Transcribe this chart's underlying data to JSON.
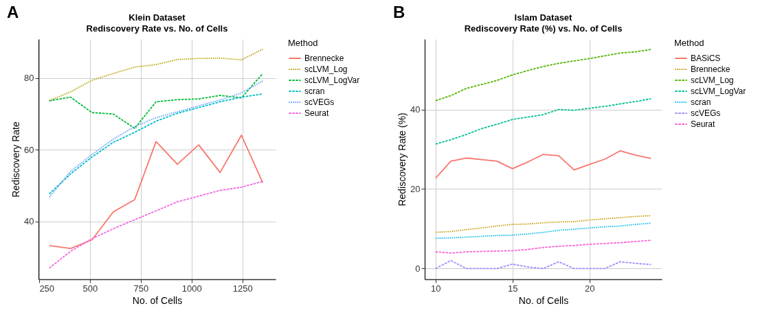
{
  "chart_data": [
    {
      "type": "line",
      "title": "Klein Dataset",
      "subtitle": "Rediscovery Rate vs. No. of Cells",
      "xlabel": "No. of Cells",
      "ylabel": "Rediscovery Rate",
      "legend_title": "Method",
      "annotations": [
        "A"
      ],
      "x": [
        300,
        405,
        510,
        615,
        720,
        825,
        930,
        1035,
        1140,
        1245,
        1350
      ],
      "xlim": [
        247,
        1413
      ],
      "xticks": [
        250,
        500,
        750,
        1000,
        1250
      ],
      "ylim": [
        23.9,
        90.9
      ],
      "yticks": [
        40,
        60,
        80
      ],
      "grid": true,
      "legend": "right",
      "marker": "none",
      "series": [
        {
          "name": "Brennecke",
          "color": "#f8766d",
          "line_style": "solid",
          "values": [
            33.3,
            32.5,
            34.9,
            42.7,
            46.1,
            62.3,
            56.0,
            61.4,
            53.7,
            64.1,
            50.8
          ]
        },
        {
          "name": "scLVM_Log",
          "color": "#b79f00",
          "line_style": "dotted",
          "values": [
            73.7,
            76.2,
            79.4,
            81.3,
            83.1,
            83.8,
            85.2,
            85.5,
            85.6,
            85.1,
            88.1
          ]
        },
        {
          "name": "scLVM_LogVar",
          "color": "#00ba38",
          "line_style": "dashed",
          "values": [
            73.7,
            74.7,
            70.4,
            70.0,
            66.0,
            73.4,
            74.0,
            74.2,
            75.2,
            74.5,
            81.3
          ]
        },
        {
          "name": "scran",
          "color": "#00bfc4",
          "line_style": "dashed",
          "values": [
            47.7,
            53.3,
            58.0,
            62.1,
            64.9,
            68.0,
            70.2,
            71.8,
            73.4,
            74.7,
            75.6
          ]
        },
        {
          "name": "scVEGs",
          "color": "#619cff",
          "line_style": "dotted",
          "values": [
            46.8,
            54.0,
            58.7,
            63.0,
            66.5,
            69.0,
            70.6,
            72.3,
            73.9,
            75.9,
            79.2
          ]
        },
        {
          "name": "Seurat",
          "color": "#f564e3",
          "line_style": "dashed",
          "values": [
            27.0,
            31.7,
            35.2,
            38.0,
            40.5,
            43.0,
            45.5,
            47.1,
            48.7,
            49.6,
            51.2
          ]
        }
      ]
    },
    {
      "type": "line",
      "title": "Islam Dataset",
      "subtitle": "Rediscovery Rate (%) vs. No. of Cells",
      "xlabel": "No. of Cells",
      "ylabel": "Rediscovery Rate (%)",
      "legend_title": "Method",
      "annotations": [
        "B"
      ],
      "x": [
        10,
        11,
        12,
        13,
        14,
        15,
        16,
        17,
        18,
        19,
        20,
        21,
        22,
        23,
        24
      ],
      "xlim": [
        9.3,
        24.7
      ],
      "xticks": [
        10,
        15,
        20
      ],
      "ylim": [
        -2.7,
        57.7
      ],
      "yticks": [
        0,
        20,
        40
      ],
      "grid": true,
      "legend": "right",
      "marker": "none",
      "series": [
        {
          "name": "BASiCS",
          "color": "#f8766d",
          "line_style": "solid",
          "values": [
            22.7,
            27.0,
            27.8,
            27.4,
            27.0,
            25.1,
            26.8,
            28.7,
            28.4,
            24.8,
            26.2,
            27.5,
            29.6,
            28.5,
            27.7
          ]
        },
        {
          "name": "Brennecke",
          "color": "#c49a00",
          "line_style": "dotted",
          "values": [
            9.1,
            9.3,
            9.8,
            10.2,
            10.7,
            11.1,
            11.2,
            11.5,
            11.7,
            11.8,
            12.2,
            12.5,
            12.8,
            13.1,
            13.3
          ]
        },
        {
          "name": "scLVM_Log",
          "color": "#53b400",
          "line_style": "dashed",
          "values": [
            42.2,
            43.5,
            45.3,
            46.3,
            47.3,
            48.7,
            49.8,
            50.8,
            51.6,
            52.2,
            52.8,
            53.5,
            54.2,
            54.5,
            55.1
          ]
        },
        {
          "name": "scLVM_LogVar",
          "color": "#00c094",
          "line_style": "dashed",
          "values": [
            31.3,
            32.4,
            33.7,
            35.2,
            36.3,
            37.5,
            38.1,
            38.7,
            40.0,
            39.8,
            40.3,
            40.8,
            41.4,
            42.0,
            42.7
          ]
        },
        {
          "name": "scran",
          "color": "#00b6eb",
          "line_style": "dotted",
          "values": [
            7.6,
            7.7,
            7.9,
            8.1,
            8.3,
            8.4,
            8.7,
            9.1,
            9.6,
            9.9,
            10.2,
            10.5,
            10.7,
            11.1,
            11.4
          ]
        },
        {
          "name": "scVEGs",
          "color": "#a58aff",
          "line_style": "dashed",
          "values": [
            0,
            2.0,
            0,
            0,
            0,
            1.1,
            0.4,
            0,
            1.7,
            0,
            0,
            0,
            1.7,
            1.3,
            1.0
          ]
        },
        {
          "name": "Seurat",
          "color": "#fb61d7",
          "line_style": "dashed",
          "values": [
            4.2,
            3.9,
            4.2,
            4.3,
            4.4,
            4.5,
            4.8,
            5.3,
            5.6,
            5.8,
            6.1,
            6.3,
            6.5,
            6.8,
            7.1
          ]
        }
      ]
    }
  ]
}
